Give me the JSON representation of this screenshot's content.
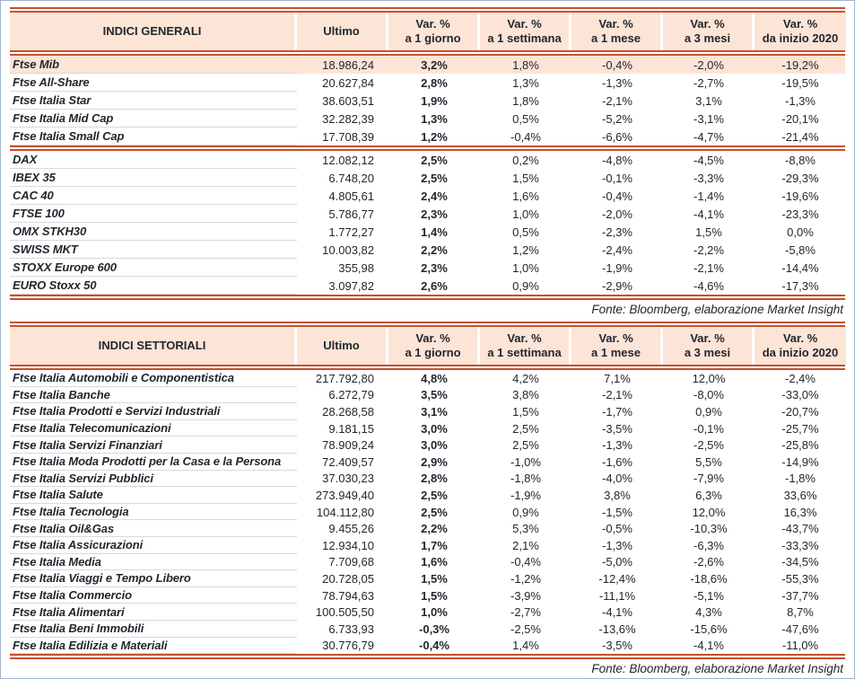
{
  "colors": {
    "accent_line": "#c6502e",
    "header_bg": "#fce4d6",
    "highlight_row_bg": "#fce4d6",
    "text": "#23262f",
    "row_divider": "#d9d9d9",
    "page_border": "#9fb6cf"
  },
  "columns": {
    "ultimo": "Ultimo",
    "var_cols": [
      {
        "line1": "Var. %",
        "line2": "a 1 giorno"
      },
      {
        "line1": "Var. %",
        "line2": "a 1 settimana"
      },
      {
        "line1": "Var. %",
        "line2": "a 1 mese"
      },
      {
        "line1": "Var. %",
        "line2": "a 3 mesi"
      },
      {
        "line1": "Var. %",
        "line2": "da inizio 2020"
      }
    ]
  },
  "tables": [
    {
      "id": "indici-generali",
      "title": "INDICI GENERALI",
      "fonte": "Fonte: Bloomberg, elaborazione Market Insight",
      "rows": [
        {
          "cells": [
            "Ftse Mib",
            "18.986,24",
            "3,2%",
            "1,8%",
            "-0,4%",
            "-2,0%",
            "-19,2%"
          ],
          "highlight": true
        },
        {
          "cells": [
            "Ftse All-Share",
            "20.627,84",
            "2,8%",
            "1,3%",
            "-1,3%",
            "-2,7%",
            "-19,5%"
          ]
        },
        {
          "cells": [
            "Ftse Italia Star",
            "38.603,51",
            "1,9%",
            "1,8%",
            "-2,1%",
            "3,1%",
            "-1,3%"
          ]
        },
        {
          "cells": [
            "Ftse Italia Mid Cap",
            "32.282,39",
            "1,3%",
            "0,5%",
            "-5,2%",
            "-3,1%",
            "-20,1%"
          ]
        },
        {
          "cells": [
            "Ftse Italia Small Cap",
            "17.708,39",
            "1,2%",
            "-0,4%",
            "-6,6%",
            "-4,7%",
            "-21,4%"
          ],
          "separator_after": true
        },
        {
          "cells": [
            "DAX",
            "12.082,12",
            "2,5%",
            "0,2%",
            "-4,8%",
            "-4,5%",
            "-8,8%"
          ]
        },
        {
          "cells": [
            "IBEX 35",
            "6.748,20",
            "2,5%",
            "1,5%",
            "-0,1%",
            "-3,3%",
            "-29,3%"
          ]
        },
        {
          "cells": [
            "CAC 40",
            "4.805,61",
            "2,4%",
            "1,6%",
            "-0,4%",
            "-1,4%",
            "-19,6%"
          ]
        },
        {
          "cells": [
            "FTSE 100",
            "5.786,77",
            "2,3%",
            "1,0%",
            "-2,0%",
            "-4,1%",
            "-23,3%"
          ]
        },
        {
          "cells": [
            "OMX STKH30",
            "1.772,27",
            "1,4%",
            "0,5%",
            "-2,3%",
            "1,5%",
            "0,0%"
          ]
        },
        {
          "cells": [
            "SWISS MKT",
            "10.003,82",
            "2,2%",
            "1,2%",
            "-2,4%",
            "-2,2%",
            "-5,8%"
          ]
        },
        {
          "cells": [
            "STOXX Europe 600",
            "355,98",
            "2,3%",
            "1,0%",
            "-1,9%",
            "-2,1%",
            "-14,4%"
          ]
        },
        {
          "cells": [
            "EURO Stoxx 50",
            "3.097,82",
            "2,6%",
            "0,9%",
            "-2,9%",
            "-4,6%",
            "-17,3%"
          ]
        }
      ]
    },
    {
      "id": "indici-settoriali",
      "title": "INDICI SETTORIALI",
      "fonte": "Fonte: Bloomberg, elaborazione Market Insight",
      "rows": [
        {
          "cells": [
            "Ftse Italia Automobili e Componentistica",
            "217.792,80",
            "4,8%",
            "4,2%",
            "7,1%",
            "12,0%",
            "-2,4%"
          ]
        },
        {
          "cells": [
            "Ftse Italia Banche",
            "6.272,79",
            "3,5%",
            "3,8%",
            "-2,1%",
            "-8,0%",
            "-33,0%"
          ]
        },
        {
          "cells": [
            "Ftse Italia Prodotti e Servizi Industriali",
            "28.268,58",
            "3,1%",
            "1,5%",
            "-1,7%",
            "0,9%",
            "-20,7%"
          ]
        },
        {
          "cells": [
            "Ftse Italia Telecomunicazioni",
            "9.181,15",
            "3,0%",
            "2,5%",
            "-3,5%",
            "-0,1%",
            "-25,7%"
          ]
        },
        {
          "cells": [
            "Ftse Italia Servizi Finanziari",
            "78.909,24",
            "3,0%",
            "2,5%",
            "-1,3%",
            "-2,5%",
            "-25,8%"
          ]
        },
        {
          "cells": [
            "Ftse Italia Moda Prodotti per la Casa e la Persona",
            "72.409,57",
            "2,9%",
            "-1,0%",
            "-1,6%",
            "5,5%",
            "-14,9%"
          ]
        },
        {
          "cells": [
            "Ftse Italia Servizi Pubblici",
            "37.030,23",
            "2,8%",
            "-1,8%",
            "-4,0%",
            "-7,9%",
            "-1,8%"
          ]
        },
        {
          "cells": [
            "Ftse Italia Salute",
            "273.949,40",
            "2,5%",
            "-1,9%",
            "3,8%",
            "6,3%",
            "33,6%"
          ]
        },
        {
          "cells": [
            "Ftse Italia Tecnologia",
            "104.112,80",
            "2,5%",
            "0,9%",
            "-1,5%",
            "12,0%",
            "16,3%"
          ]
        },
        {
          "cells": [
            "Ftse Italia Oil&Gas",
            "9.455,26",
            "2,2%",
            "5,3%",
            "-0,5%",
            "-10,3%",
            "-43,7%"
          ]
        },
        {
          "cells": [
            "Ftse Italia Assicurazioni",
            "12.934,10",
            "1,7%",
            "2,1%",
            "-1,3%",
            "-6,3%",
            "-33,3%"
          ]
        },
        {
          "cells": [
            "Ftse Italia Media",
            "7.709,68",
            "1,6%",
            "-0,4%",
            "-5,0%",
            "-2,6%",
            "-34,5%"
          ]
        },
        {
          "cells": [
            "Ftse Italia Viaggi e Tempo Libero",
            "20.728,05",
            "1,5%",
            "-1,2%",
            "-12,4%",
            "-18,6%",
            "-55,3%"
          ]
        },
        {
          "cells": [
            "Ftse Italia Commercio",
            "78.794,63",
            "1,5%",
            "-3,9%",
            "-11,1%",
            "-5,1%",
            "-37,7%"
          ]
        },
        {
          "cells": [
            "Ftse Italia Alimentari",
            "100.505,50",
            "1,0%",
            "-2,7%",
            "-4,1%",
            "4,3%",
            "8,7%"
          ]
        },
        {
          "cells": [
            "Ftse Italia Beni Immobili",
            "6.733,93",
            "-0,3%",
            "-2,5%",
            "-13,6%",
            "-15,6%",
            "-47,6%"
          ]
        },
        {
          "cells": [
            "Ftse Italia Edilizia e Materiali",
            "30.776,79",
            "-0,4%",
            "1,4%",
            "-3,5%",
            "-4,1%",
            "-11,0%"
          ]
        }
      ]
    }
  ]
}
